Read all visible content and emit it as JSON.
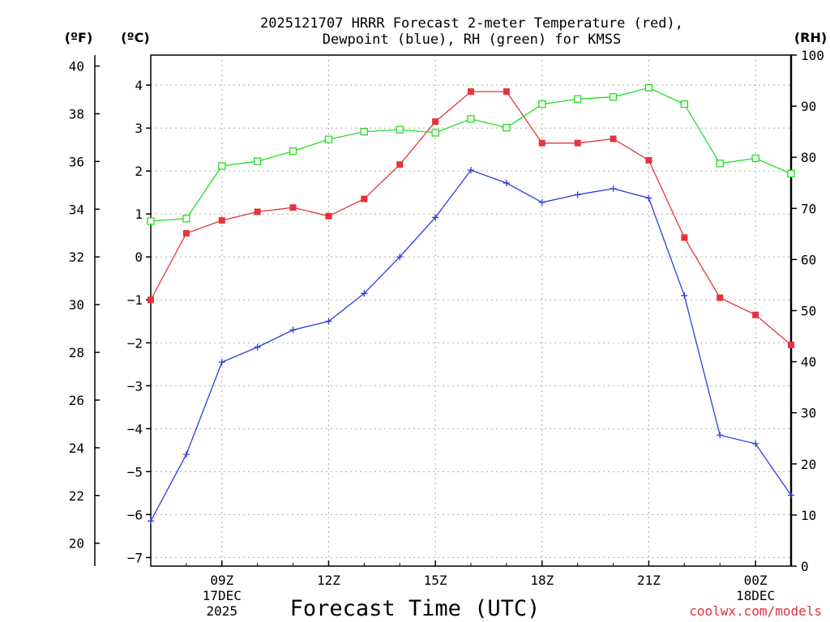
{
  "chart_data": {
    "type": "line",
    "title_line1": "2025121707 HRRR Forecast 2-meter Temperature (red),",
    "title_line2": "Dewpoint (blue), RH (green) for KMSS",
    "xlabel": "Forecast Time (UTC)",
    "credit": "coolwx.com/models",
    "units": {
      "fahrenheit": "(ºF)",
      "celsius": "(ºC)",
      "rh": "(RH)"
    },
    "x": [
      7,
      8,
      9,
      10,
      11,
      12,
      13,
      14,
      15,
      16,
      17,
      18,
      19,
      20,
      21,
      22,
      23,
      24,
      25
    ],
    "xlim": [
      7,
      25
    ],
    "x_ticks": [
      {
        "x": 9,
        "label": "09Z"
      },
      {
        "x": 12,
        "label": "12Z"
      },
      {
        "x": 15,
        "label": "15Z"
      },
      {
        "x": 18,
        "label": "18Z"
      },
      {
        "x": 21,
        "label": "21Z"
      },
      {
        "x": 24,
        "label": "00Z"
      }
    ],
    "date_labels": [
      {
        "x": 9,
        "line1": "17DEC",
        "line2": "2025"
      },
      {
        "x": 24,
        "line1": "18DEC",
        "line2": ""
      }
    ],
    "y_celsius": {
      "lim": [
        -7.2,
        4.7
      ],
      "ticks": [
        4,
        3,
        2,
        1,
        0,
        -1,
        -2,
        -3,
        -4,
        -5,
        -6,
        -7
      ],
      "tick_labels": [
        "4",
        "3",
        "2",
        "1",
        "0",
        "−1",
        "−2",
        "−3",
        "−4",
        "−5",
        "−6",
        "−7"
      ]
    },
    "y_fahrenheit": {
      "ticks": [
        40,
        38,
        36,
        34,
        32,
        30,
        28,
        26,
        24,
        22,
        20
      ]
    },
    "y_rh": {
      "lim": [
        0,
        100
      ],
      "ticks": [
        100,
        90,
        80,
        70,
        60,
        50,
        40,
        30,
        20,
        10,
        0
      ]
    },
    "series": [
      {
        "name": "2-meter Temperature",
        "color": "#e8333a",
        "axis": "celsius",
        "marker": "filled-square",
        "values": [
          -1.0,
          0.55,
          0.85,
          1.05,
          1.15,
          0.95,
          1.35,
          2.15,
          3.15,
          3.85,
          3.85,
          2.65,
          2.65,
          2.75,
          2.25,
          0.45,
          -0.95,
          -1.35,
          -2.05
        ]
      },
      {
        "name": "Dewpoint",
        "color": "#2b3de0",
        "axis": "celsius",
        "marker": "plus",
        "values": [
          -6.15,
          -4.6,
          -2.45,
          -2.1,
          -1.7,
          -1.5,
          -0.85,
          0.0,
          0.92,
          2.02,
          1.72,
          1.27,
          1.45,
          1.59,
          1.37,
          -0.9,
          -4.15,
          -4.35,
          -5.55
        ]
      },
      {
        "name": "Relative Humidity",
        "color": "#22dd22",
        "axis": "rh",
        "marker": "open-square",
        "values": [
          67.5,
          68.0,
          78.3,
          79.2,
          81.2,
          83.5,
          85.0,
          85.4,
          84.8,
          87.5,
          85.8,
          90.4,
          91.4,
          91.8,
          93.6,
          90.4,
          78.8,
          79.8,
          76.8
        ]
      }
    ]
  }
}
